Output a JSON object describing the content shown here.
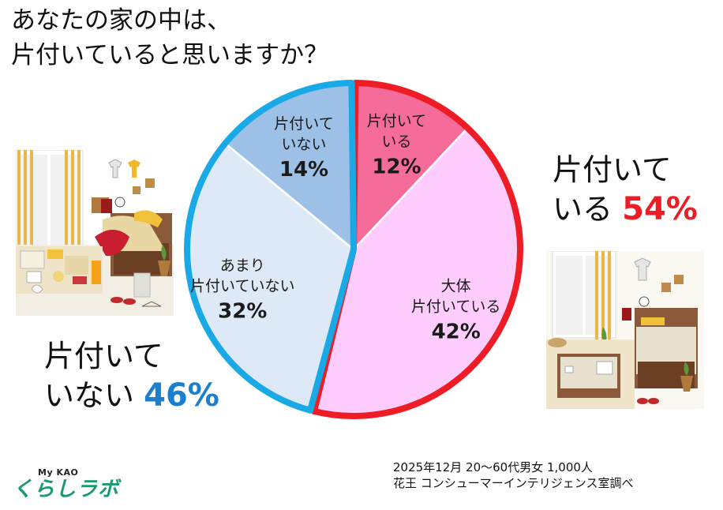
{
  "title": {
    "line1": "あなたの家の中は、",
    "line2": "片付いていると思いますか？"
  },
  "chart_data": {
    "type": "pie",
    "start": "top-clockwise",
    "slices": [
      {
        "label_lines": [
          "片付いて",
          "いる"
        ],
        "value": 12,
        "value_label": "12%",
        "color": "#f56b99",
        "group": "tidy"
      },
      {
        "label_lines": [
          "大体",
          "片付いている"
        ],
        "value": 42,
        "value_label": "42%",
        "color": "#ffccfe",
        "group": "tidy"
      },
      {
        "label_lines": [
          "あまり",
          "片付いていない"
        ],
        "value": 32,
        "value_label": "32%",
        "color": "#dde9f6",
        "group": "untidy"
      },
      {
        "label_lines": [
          "片付いて",
          "いない"
        ],
        "value": 14,
        "value_label": "14%",
        "color": "#9dc0e6",
        "group": "untidy"
      }
    ],
    "groups": {
      "tidy": {
        "line1": "片付いて",
        "line2_text": "いる",
        "pct": "54%",
        "color": "#ee1c25",
        "ring_color": "#ee1c25"
      },
      "untidy": {
        "line1": "片付いて",
        "line2_text": "いない",
        "pct": "46%",
        "color": "#1b7fd0",
        "ring_color": "#19a9e6"
      }
    }
  },
  "credit": {
    "line1": "2025年12月  20～60代男女 1,000人",
    "line2": "花王  コンシューマーインテリジェンス室調べ"
  },
  "logo": {
    "small": "My KAO",
    "big": "くらしラボ",
    "color": "#1b9a6c"
  },
  "illustrations": [
    "messy-room-illustration",
    "tidy-room-illustration"
  ]
}
